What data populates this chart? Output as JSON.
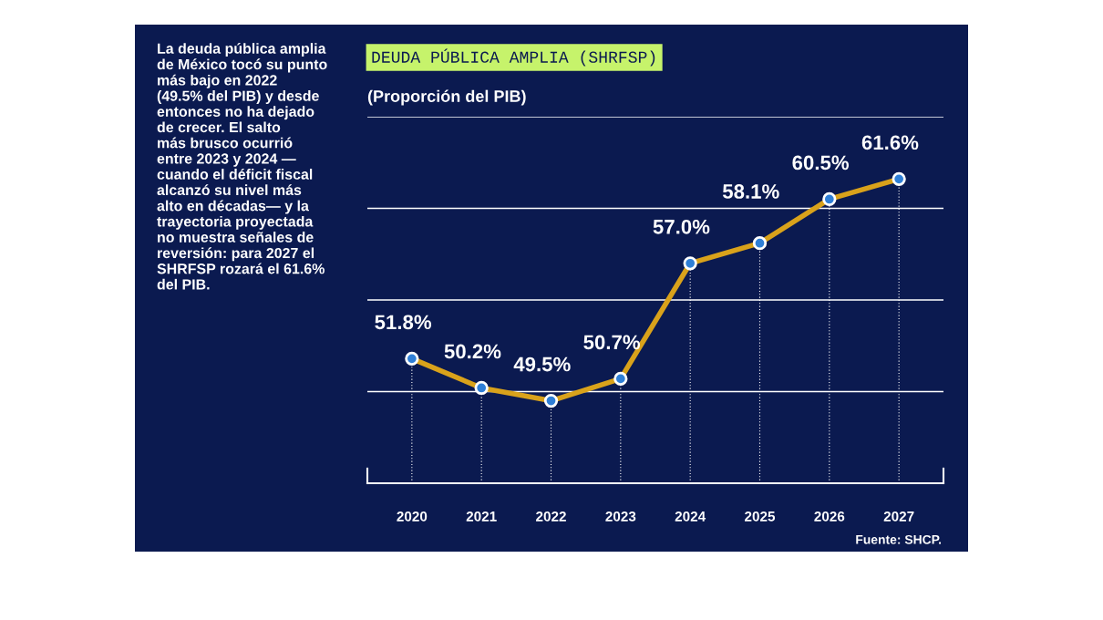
{
  "chart_data": {
    "type": "line",
    "title": "DEUDA PÚBLICA AMPLIA (SHRFSP)",
    "subtitle": "(Proporción del PIB)",
    "categories": [
      "2020",
      "2021",
      "2022",
      "2023",
      "2024",
      "2025",
      "2026",
      "2027"
    ],
    "series": [
      {
        "color": "#d9a21b",
        "values": [
          51.8,
          50.2,
          49.5,
          50.7,
          57.0,
          58.1,
          60.5,
          61.6
        ],
        "value_labels": [
          "51.8%",
          "50.2%",
          "49.5%",
          "50.7%",
          "57.0%",
          "58.1%",
          "60.5%",
          "61.6%"
        ]
      }
    ],
    "ylim": [
      45,
      65
    ],
    "yticks": [
      {
        "value": 50,
        "label": null
      },
      {
        "value": 55,
        "label": null
      },
      {
        "value": 60,
        "label": null
      },
      {
        "value": 65,
        "label": null
      }
    ],
    "tick_labels": "x",
    "grid": true,
    "marker": "circle",
    "line_style": "solid",
    "legend": false,
    "annotations": [
      "La deuda pública amplia\nde México tocó su punto\nmás bajo en 2022\n(49.5% del PIB) y desde\nentonces no ha dejado\nde crecer. El salto\nmás brusco ocurrió\nentre 2023 y 2024 —\ncuando el déficit fiscal\nalcanzó su nivel más\nalto en décadas— y la\ntrayectoria proyectada\nno muestra señales de\nreversión: para 2027 el\nSHRFSP rozará el 61.6%\ndel PIB.",
      "Fuente: SHCP."
    ]
  }
}
